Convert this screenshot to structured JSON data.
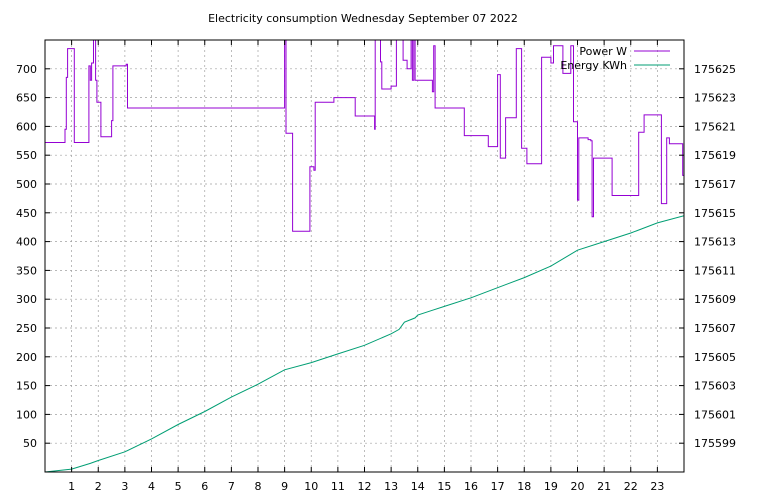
{
  "chart_data": {
    "type": "line",
    "title": "Electricity consumption Wednesday September 07 2022",
    "xlabel": "",
    "ylabel": "",
    "y2label": "",
    "grid": true,
    "legend_position": "top-right",
    "xlim": [
      0,
      24
    ],
    "ylim": [
      0,
      750
    ],
    "y2lim": [
      175597,
      175627
    ],
    "x_ticks": [
      1,
      2,
      3,
      4,
      5,
      6,
      7,
      8,
      9,
      10,
      11,
      12,
      13,
      14,
      15,
      16,
      17,
      18,
      19,
      20,
      21,
      22,
      23
    ],
    "y_ticks": [
      50,
      100,
      150,
      200,
      250,
      300,
      350,
      400,
      450,
      500,
      550,
      600,
      650,
      700
    ],
    "y2_ticks": [
      175599,
      175601,
      175603,
      175605,
      175607,
      175609,
      175611,
      175613,
      175615,
      175617,
      175619,
      175621,
      175623,
      175625
    ],
    "series": [
      {
        "name": "Power W",
        "axis": "y1",
        "color": "#9400d3",
        "step": true,
        "x": [
          0,
          0.75,
          0.8,
          0.85,
          1.1,
          1.65,
          1.7,
          1.75,
          1.82,
          1.9,
          1.95,
          2.1,
          2.5,
          2.55,
          3.05,
          3.1,
          9.0,
          9.05,
          9.3,
          9.9,
          9.95,
          10.1,
          10.15,
          10.8,
          10.85,
          11.6,
          11.65,
          12.35,
          12.38,
          12.4,
          12.6,
          12.65,
          12.75,
          13.0,
          13.2,
          13.45,
          13.6,
          13.75,
          13.8,
          13.85,
          13.9,
          14.0,
          14.05,
          14.55,
          14.6,
          14.65,
          15.2,
          15.75,
          16.35,
          16.65,
          17.0,
          17.1,
          17.3,
          17.7,
          17.9,
          18.0,
          18.1,
          18.65,
          18.7,
          19.0,
          19.1,
          19.45,
          19.75,
          19.85,
          20.0,
          20.05,
          20.4,
          20.5,
          20.55,
          20.6,
          20.65,
          21.3,
          22.0,
          22.3,
          22.5,
          22.8,
          23.15,
          23.35,
          23.45,
          23.9,
          23.95,
          24.0
        ],
        "values": [
          572,
          595,
          685,
          735,
          572,
          705,
          680,
          710,
          760,
          680,
          642,
          582,
          610,
          705,
          708,
          632,
          760,
          588,
          418,
          418,
          530,
          524,
          642,
          642,
          650,
          650,
          618,
          618,
          595,
          760,
          712,
          665,
          665,
          670,
          760,
          715,
          700,
          760,
          680,
          760,
          680,
          680,
          680,
          660,
          740,
          632,
          632,
          584,
          584,
          565,
          690,
          545,
          615,
          735,
          562,
          562,
          535,
          720,
          720,
          710,
          740,
          692,
          740,
          608,
          472,
          580,
          577,
          575,
          443,
          545,
          545,
          480,
          480,
          590,
          620,
          620,
          466,
          580,
          570,
          570,
          515,
          735
        ]
      },
      {
        "name": "Energy KWh",
        "axis": "y2",
        "color": "#009e73",
        "step": false,
        "x": [
          0,
          1,
          1.7,
          2,
          3,
          4,
          5,
          6,
          7,
          8,
          9,
          10,
          11,
          12,
          13,
          13.3,
          13.5,
          13.9,
          14,
          14.5,
          15,
          16,
          17,
          18,
          19,
          20,
          21,
          22,
          23,
          24
        ],
        "values": [
          175597.0,
          175597.2,
          175597.6,
          175597.8,
          175598.4,
          175599.3,
          175600.3,
          175601.2,
          175602.2,
          175603.1,
          175604.1,
          175604.6,
          175605.2,
          175605.8,
          175606.6,
          175606.9,
          175607.4,
          175607.7,
          175607.9,
          175608.2,
          175608.5,
          175609.1,
          175609.8,
          175610.5,
          175611.3,
          175612.4,
          175613.0,
          175613.6,
          175614.3,
          175614.8
        ]
      }
    ]
  }
}
